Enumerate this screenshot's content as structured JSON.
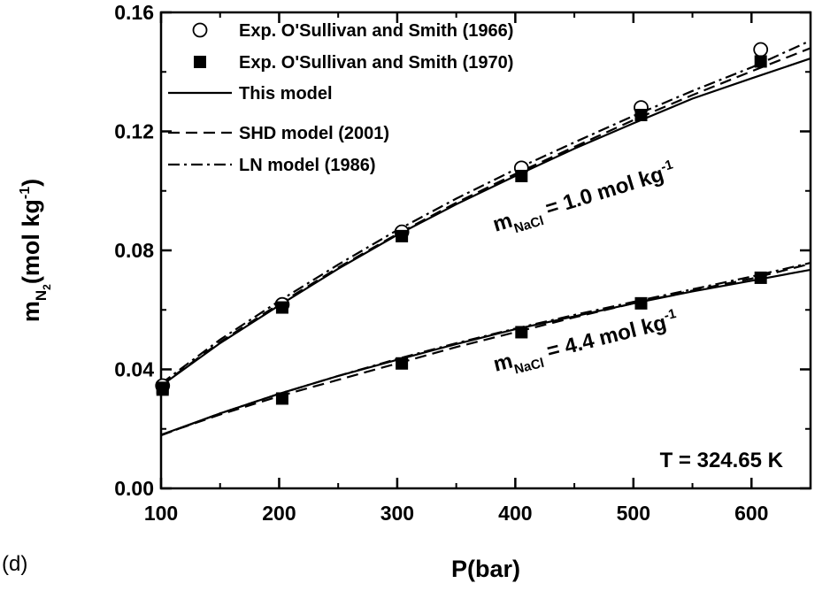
{
  "chart_data": {
    "type": "scatter",
    "panel_label": "(d)",
    "xlabel": "P(bar)",
    "ylabel": {
      "main": "m",
      "sub": "N",
      "subsub": "2",
      "unit": "(mol kg",
      "unit_sup": "-1",
      "unit_close": ")"
    },
    "xlim": [
      100,
      650
    ],
    "ylim": [
      0,
      0.16
    ],
    "x_ticks": [
      100,
      200,
      300,
      400,
      500,
      600
    ],
    "y_ticks": [
      0.0,
      0.04,
      0.08,
      0.12,
      0.16
    ],
    "x_tick_labels": [
      "100",
      "200",
      "300",
      "400",
      "500",
      "600"
    ],
    "y_tick_labels": [
      "0.00",
      "0.04",
      "0.08",
      "0.12",
      "0.16"
    ],
    "grid": false,
    "legend_position": "top-left",
    "legend": [
      {
        "label": "Exp. O'Sullivan and Smith (1966)",
        "kind": "open-circle"
      },
      {
        "label": "Exp. O'Sullivan and Smith (1970)",
        "kind": "filled-square"
      },
      {
        "label": "This model",
        "kind": "solid"
      },
      {
        "label": "SHD model (2001)",
        "kind": "dashed"
      },
      {
        "label": "LN model (1986)",
        "kind": "dashdot"
      }
    ],
    "temperature_label": "T = 324.65 K",
    "annotations": [
      {
        "prefix": "m",
        "sub": "NaCl",
        "text": " = 1.0 mol kg",
        "sup": "-1"
      },
      {
        "prefix": "m",
        "sub": "NaCl",
        "text": " = 4.4 mol kg",
        "sup": "-1"
      }
    ],
    "series": [
      {
        "group": "1.0",
        "kind": "open-circle",
        "x": [
          101.3,
          202.6,
          303.9,
          405.2,
          506.5,
          607.8
        ],
        "y": [
          0.0345,
          0.0618,
          0.0862,
          0.1077,
          0.128,
          0.1475
        ]
      },
      {
        "group": "1.0",
        "kind": "filled-square",
        "x": [
          101.3,
          202.6,
          303.9,
          405.2,
          506.5,
          607.8
        ],
        "y": [
          0.0338,
          0.0608,
          0.0848,
          0.105,
          0.1255,
          0.1435
        ]
      },
      {
        "group": "1.0",
        "kind": "solid",
        "x": [
          100,
          150,
          200,
          250,
          300,
          350,
          400,
          450,
          500,
          550,
          600,
          650
        ],
        "y": [
          0.0345,
          0.0488,
          0.0615,
          0.0738,
          0.0852,
          0.0955,
          0.105,
          0.1142,
          0.1227,
          0.131,
          0.1378,
          0.1445
        ]
      },
      {
        "group": "1.0",
        "kind": "dashed",
        "x": [
          100,
          150,
          200,
          250,
          300,
          350,
          400,
          450,
          500,
          550,
          600,
          650
        ],
        "y": [
          0.0347,
          0.0492,
          0.062,
          0.0742,
          0.0855,
          0.096,
          0.1057,
          0.1148,
          0.1238,
          0.1322,
          0.1402,
          0.148
        ]
      },
      {
        "group": "1.0",
        "kind": "dashdot",
        "x": [
          100,
          150,
          200,
          250,
          300,
          350,
          400,
          450,
          500,
          550,
          600,
          650
        ],
        "y": [
          0.0352,
          0.05,
          0.063,
          0.0752,
          0.0868,
          0.0974,
          0.1072,
          0.1163,
          0.1252,
          0.1336,
          0.1415,
          0.1505
        ]
      },
      {
        "group": "4.4",
        "kind": "filled-square",
        "x": [
          101.3,
          202.6,
          303.9,
          405.2,
          506.5,
          607.8
        ],
        "y": [
          0.0332,
          0.0302,
          0.042,
          0.0525,
          0.0622,
          0.0708
        ]
      },
      {
        "group": "4.4",
        "kind": "solid",
        "x": [
          100,
          150,
          200,
          250,
          300,
          350,
          400,
          450,
          500,
          550,
          600,
          650
        ],
        "y": [
          0.018,
          0.0252,
          0.0318,
          0.0378,
          0.0432,
          0.0485,
          0.0535,
          0.0578,
          0.0622,
          0.0662,
          0.0698,
          0.0735
        ]
      },
      {
        "group": "4.4",
        "kind": "dashed",
        "x": [
          100,
          150,
          200,
          250,
          300,
          350,
          400,
          450,
          500,
          550,
          600,
          650
        ],
        "y": [
          0.018,
          0.0248,
          0.031,
          0.0365,
          0.042,
          0.0475,
          0.0525,
          0.0575,
          0.0622,
          0.0665,
          0.0705,
          0.0755
        ]
      },
      {
        "group": "4.4",
        "kind": "dashdot",
        "x": [
          100,
          150,
          200,
          250,
          300,
          350,
          400,
          450,
          500,
          550,
          600,
          650
        ],
        "y": [
          0.0178,
          0.0252,
          0.0318,
          0.0378,
          0.0435,
          0.0488,
          0.0537,
          0.0583,
          0.0627,
          0.0669,
          0.0712,
          0.0758
        ]
      }
    ]
  }
}
